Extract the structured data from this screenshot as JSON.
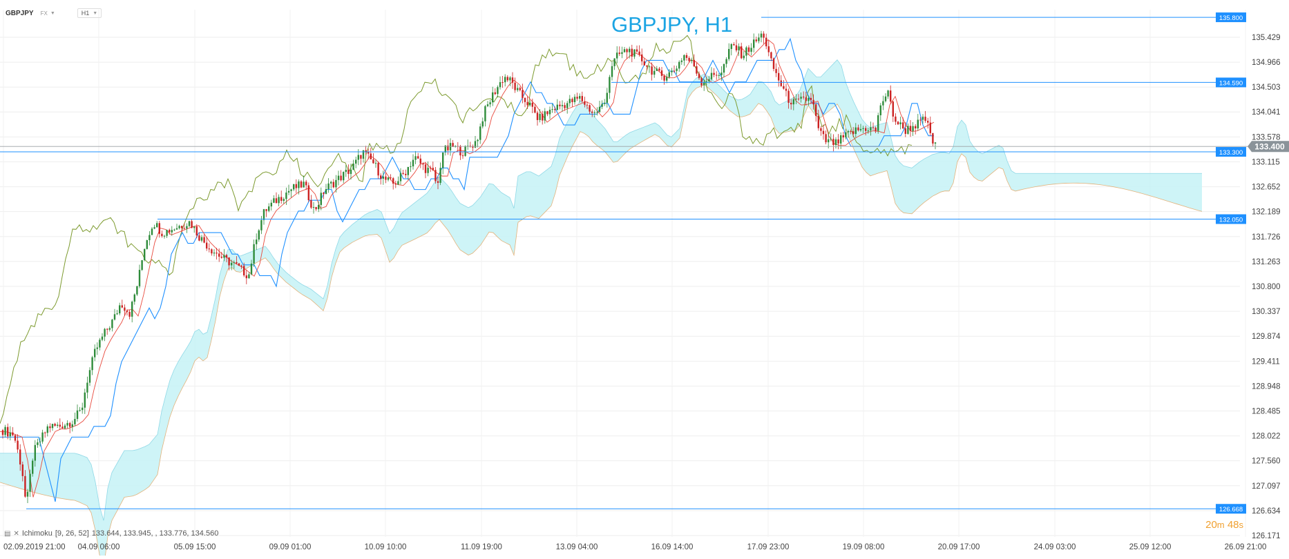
{
  "toolbar": {
    "symbol": "GBPJPY",
    "market": "FX",
    "timeframe": "H1"
  },
  "title": "GBPJPY, H1",
  "indicator": {
    "icons": [
      "chart-icon",
      "close-icon"
    ],
    "name": "Ichimoku",
    "params": "[9, 26, 52]",
    "values": "133.644,   133.945,   ,   133.776,   134.560"
  },
  "timer": {
    "minutes": "20",
    "m": "m",
    "seconds": "48",
    "s": "s"
  },
  "colors": {
    "accent": "#1ba4e3",
    "bull": "#2e8b3a",
    "bear": "#cc2222",
    "tenkan": "#e8493d",
    "kijun": "#1e90ff",
    "chikou": "#7c9a2e",
    "cloud_bull": "#c6f2f6",
    "cloud_bear": "#f7cfa4",
    "hline": "#1e90ff",
    "price_tag": "#8a9399",
    "timer": "#f0a030"
  },
  "chart_data": {
    "type": "candlestick",
    "title": "GBPJPY, H1",
    "ylim": [
      126.171,
      136.0
    ],
    "y_ticks": [
      "135.429",
      "134.966",
      "134.503",
      "134.041",
      "133.578",
      "133.115",
      "132.652",
      "132.189",
      "131.726",
      "131.263",
      "130.800",
      "130.337",
      "129.874",
      "129.411",
      "128.948",
      "128.485",
      "128.022",
      "127.560",
      "127.097",
      "126.634",
      "126.171"
    ],
    "x_ticks": [
      "02.09.2019  21:00",
      "04.09  06:00",
      "05.09  15:00",
      "09.09  01:00",
      "10.09  10:00",
      "11.09  19:00",
      "13.09  04:00",
      "16.09  14:00",
      "17.09  23:00",
      "19.09  08:00",
      "20.09  17:00",
      "24.09  03:00",
      "25.09  12:00",
      "26.09  21:00"
    ],
    "horizontal_lines": [
      {
        "value": 135.8,
        "label": "135.800"
      },
      {
        "value": 134.59,
        "label": "134.590"
      },
      {
        "value": 133.3,
        "label": "133.300"
      },
      {
        "value": 132.05,
        "label": "132.050"
      },
      {
        "value": 126.668,
        "label": "126.668"
      }
    ],
    "current_price": {
      "value": 133.4,
      "label": "133.400"
    },
    "path_points": [
      [
        0,
        128.15
      ],
      [
        20,
        128.05
      ],
      [
        32,
        127.4
      ],
      [
        38,
        126.7
      ],
      [
        48,
        127.7
      ],
      [
        70,
        128.2
      ],
      [
        85,
        128.2
      ],
      [
        105,
        128.3
      ],
      [
        118,
        128.5
      ],
      [
        125,
        129.0
      ],
      [
        138,
        129.6
      ],
      [
        150,
        129.9
      ],
      [
        165,
        130.2
      ],
      [
        175,
        130.5
      ],
      [
        188,
        130.3
      ],
      [
        200,
        130.9
      ],
      [
        210,
        131.6
      ],
      [
        222,
        132.0
      ],
      [
        235,
        131.8
      ],
      [
        255,
        131.9
      ],
      [
        275,
        132.0
      ],
      [
        290,
        131.7
      ],
      [
        305,
        131.5
      ],
      [
        325,
        131.3
      ],
      [
        340,
        131.2
      ],
      [
        360,
        131.0
      ],
      [
        372,
        131.8
      ],
      [
        383,
        132.2
      ],
      [
        400,
        132.4
      ],
      [
        420,
        132.6
      ],
      [
        440,
        132.7
      ],
      [
        455,
        132.2
      ],
      [
        470,
        132.6
      ],
      [
        490,
        132.8
      ],
      [
        510,
        133.0
      ],
      [
        525,
        133.3
      ],
      [
        540,
        133.1
      ],
      [
        555,
        132.8
      ],
      [
        570,
        132.7
      ],
      [
        585,
        132.9
      ],
      [
        600,
        133.2
      ],
      [
        615,
        133.0
      ],
      [
        628,
        132.9
      ],
      [
        633,
        132.6
      ],
      [
        640,
        133.3
      ],
      [
        655,
        133.4
      ],
      [
        670,
        133.3
      ],
      [
        690,
        133.5
      ],
      [
        700,
        134.0
      ],
      [
        715,
        134.4
      ],
      [
        730,
        134.7
      ],
      [
        740,
        134.6
      ],
      [
        750,
        134.4
      ],
      [
        765,
        134.2
      ],
      [
        780,
        133.9
      ],
      [
        800,
        134.1
      ],
      [
        820,
        134.2
      ],
      [
        840,
        134.3
      ],
      [
        860,
        134.0
      ],
      [
        875,
        134.2
      ],
      [
        885,
        134.9
      ],
      [
        895,
        135.1
      ],
      [
        910,
        135.2
      ],
      [
        930,
        135.0
      ],
      [
        945,
        134.8
      ],
      [
        960,
        134.7
      ],
      [
        975,
        134.8
      ],
      [
        990,
        135.1
      ],
      [
        1005,
        134.9
      ],
      [
        1015,
        134.6
      ],
      [
        1030,
        134.7
      ],
      [
        1045,
        134.8
      ],
      [
        1060,
        135.3
      ],
      [
        1075,
        135.1
      ],
      [
        1090,
        135.3
      ],
      [
        1105,
        135.5
      ],
      [
        1115,
        135.0
      ],
      [
        1125,
        134.7
      ],
      [
        1140,
        134.3
      ],
      [
        1150,
        134.2
      ],
      [
        1160,
        134.25
      ],
      [
        1175,
        134.3
      ],
      [
        1185,
        133.7
      ],
      [
        1195,
        133.5
      ],
      [
        1210,
        133.45
      ],
      [
        1225,
        133.6
      ],
      [
        1240,
        133.7
      ],
      [
        1255,
        133.75
      ],
      [
        1268,
        133.7
      ],
      [
        1275,
        134.2
      ],
      [
        1285,
        134.4
      ],
      [
        1295,
        133.9
      ],
      [
        1310,
        133.7
      ],
      [
        1325,
        133.8
      ],
      [
        1340,
        133.9
      ],
      [
        1350,
        133.5
      ],
      [
        1356,
        133.35
      ]
    ]
  }
}
